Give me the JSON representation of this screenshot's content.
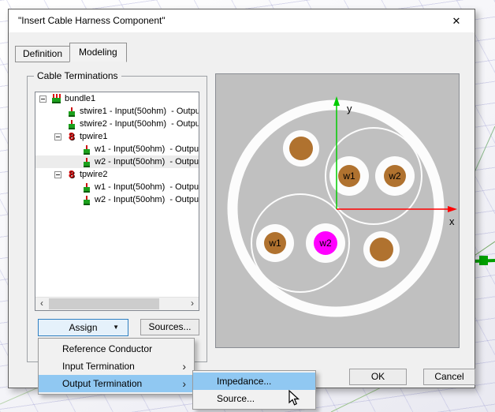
{
  "window": {
    "title": "\"Insert Cable Harness Component\""
  },
  "icons": {
    "close": "✕",
    "dropdown_arrow": "▼",
    "submenu_arrow": "›",
    "scroll_left": "‹",
    "scroll_right": "›",
    "expander_state": "-"
  },
  "tabs": [
    {
      "label": "Definition",
      "active": false
    },
    {
      "label": "Modeling",
      "active": true
    }
  ],
  "cable_terminations": {
    "group_label": "Cable Terminations",
    "tree_rows": [
      {
        "label": "bundle1",
        "icon": "bundle-icon",
        "level": 0,
        "expander": true,
        "selected": false
      },
      {
        "label": "stwire1 - Input(50ohm)  - Outpu",
        "icon": "wire-icon",
        "level": 1,
        "expander": false,
        "selected": false
      },
      {
        "label": "stwire2 - Input(50ohm)  - Outpu",
        "icon": "wire-icon",
        "level": 1,
        "expander": false,
        "selected": false
      },
      {
        "label": "tpwire1",
        "icon": "twisted-pair-icon",
        "level": 1,
        "expander": true,
        "selected": false
      },
      {
        "label": "w1 - Input(50ohm)  - Outpu",
        "icon": "wire-icon",
        "level": 2,
        "expander": false,
        "selected": false
      },
      {
        "label": "w2 - Input(50ohm)  - Outpu",
        "icon": "wire-icon",
        "level": 2,
        "expander": false,
        "selected": true
      },
      {
        "label": "tpwire2",
        "icon": "twisted-pair-icon",
        "level": 1,
        "expander": true,
        "selected": false
      },
      {
        "label": "w1 - Input(50ohm)  - Outpu",
        "icon": "wire-icon",
        "level": 2,
        "expander": false,
        "selected": false
      },
      {
        "label": "w2 - Input(50ohm)  - Outpu",
        "icon": "wire-icon",
        "level": 2,
        "expander": false,
        "selected": false
      }
    ]
  },
  "buttons": {
    "assign": "Assign",
    "sources": "Sources...",
    "ok": "OK",
    "cancel": "Cancel"
  },
  "context_menu": {
    "items": [
      {
        "label": "Reference Conductor",
        "has_submenu": false,
        "highlighted": false
      },
      {
        "label": "Input Termination",
        "has_submenu": true,
        "highlighted": false
      },
      {
        "label": "Output Termination",
        "has_submenu": true,
        "highlighted": true
      }
    ]
  },
  "submenu": {
    "items": [
      {
        "label": "Impedance...",
        "highlighted": true
      },
      {
        "label": "Source...",
        "highlighted": false
      }
    ]
  },
  "preview": {
    "axis_labels": {
      "x": "x",
      "y": "y"
    },
    "wire_labels": {
      "pair1_w1": "w1",
      "pair1_w2": "w2",
      "pair2_w1": "w1",
      "pair2_w2": "w2"
    },
    "colors": {
      "panel_bg": "#c0c0c0",
      "insulation": "#fcfcfc",
      "conductor": "#b0722f",
      "selected_conductor": "#ff00ff",
      "x_axis": "#ff0000",
      "y_axis": "#00cc00",
      "menu_highlight": "#90c8f2",
      "assign_hover_border": "#2f7fc1"
    }
  }
}
